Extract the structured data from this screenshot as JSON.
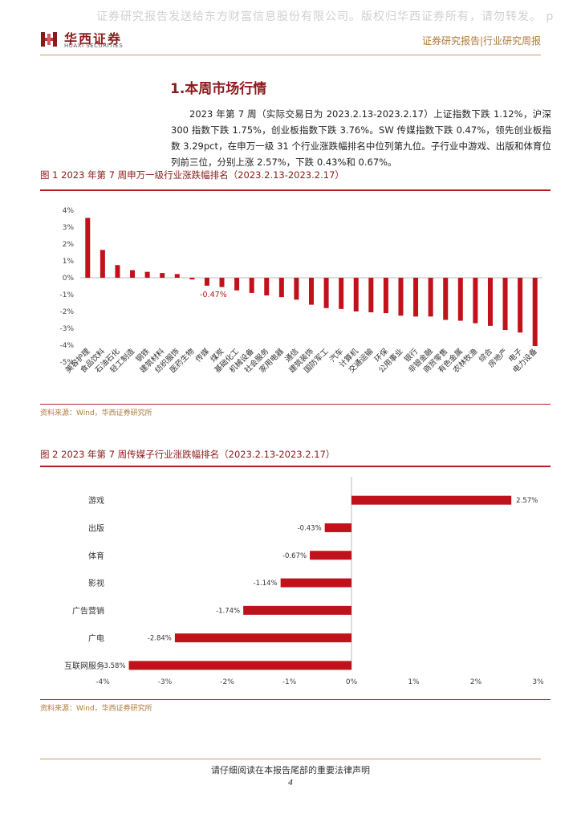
{
  "watermark": "证券研究报告发送给东方财富信息股份有限公司。版权归华西证券所有，请勿转发。 p",
  "header": {
    "logo_cn": "华西证券",
    "logo_en": "HUAXI SECURITIES",
    "report_tag": "证券研究报告|行业研究周报"
  },
  "section": {
    "title": "1.本周市场行情",
    "paragraph": "2023 年第 7 周（实际交易日为 2023.2.13-2023.2.17）上证指数下跌 1.12%，沪深 300 指数下跌 1.75%，创业板指数下跌 3.76%。SW 传媒指数下跌 0.47%，领先创业板指数 3.29pct，在申万一级 31 个行业涨跌幅排名中位列第九位。子行业中游戏、出版和体育位列前三位，分别上涨 2.57%，下跌 0.43%和 0.67%。"
  },
  "figure1": {
    "title": "图 1 2023 年第 7 周申万一级行业涨跌幅排名（2023.2.13-2023.2.17）",
    "source": "资料来源：Wind，华西证券研究所"
  },
  "figure2": {
    "title": "图 2 2023 年第 7 周传媒子行业涨跌幅排名（2023.2.13-2023.2.17）",
    "source": "资料来源：Wind，华西证券研究所"
  },
  "footer": {
    "disclaimer": "请仔细阅读在本报告尾部的重要法律声明",
    "page": "4"
  },
  "chart_data": [
    {
      "type": "bar",
      "orientation": "vertical",
      "categories": [
        "美容护理",
        "食品饮料",
        "石油石化",
        "轻工制造",
        "钢铁",
        "建筑材料",
        "纺织服饰",
        "医药生物",
        "传媒",
        "煤炭",
        "基础化工",
        "机械设备",
        "社会服务",
        "家用电器",
        "通信",
        "建筑装饰",
        "国防军工",
        "汽车",
        "计算机",
        "交通运输",
        "环保",
        "公用事业",
        "银行",
        "非银金融",
        "商贸零售",
        "有色金属",
        "农林牧渔",
        "综合",
        "房地产",
        "电子",
        "电力设备"
      ],
      "values": [
        3.55,
        1.65,
        0.75,
        0.45,
        0.35,
        0.28,
        0.22,
        -0.1,
        -0.47,
        -0.55,
        -0.75,
        -0.9,
        -1.05,
        -1.15,
        -1.3,
        -1.6,
        -1.8,
        -1.85,
        -2.0,
        -2.05,
        -2.1,
        -2.25,
        -2.3,
        -2.3,
        -2.5,
        -2.55,
        -2.7,
        -2.85,
        -3.1,
        -3.25,
        -4.05
      ],
      "labels": {
        "8": "-0.47%"
      },
      "ylim": [
        -5,
        4
      ],
      "yticks": [
        "4%",
        "3%",
        "2%",
        "1%",
        "0%",
        "-1%",
        "-2%",
        "-3%",
        "-4%",
        "-5%"
      ],
      "color": "#c0121b",
      "grid": false
    },
    {
      "type": "bar",
      "orientation": "horizontal",
      "categories": [
        "游戏",
        "出版",
        "体育",
        "影视",
        "广告营销",
        "广电",
        "互联网服务"
      ],
      "values": [
        2.57,
        -0.43,
        -0.67,
        -1.14,
        -1.74,
        -2.84,
        -3.58
      ],
      "value_labels": [
        "2.57%",
        "-0.43%",
        "-0.67%",
        "-1.14%",
        "-1.74%",
        "-2.84%",
        "-3.58%"
      ],
      "xlim": [
        -4,
        3
      ],
      "xticks": [
        "-4%",
        "-3%",
        "-2%",
        "-1%",
        "0%",
        "1%",
        "2%",
        "3%"
      ],
      "color": "#c0121b",
      "grid": false
    }
  ]
}
